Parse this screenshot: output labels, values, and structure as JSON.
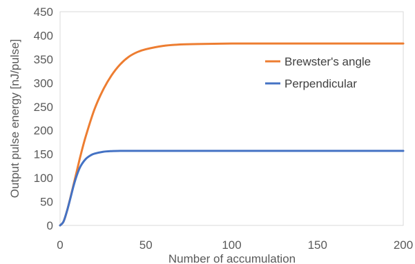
{
  "chart_data": {
    "type": "line",
    "xlabel": "Number of accumulation",
    "ylabel": "Output pulse energy [nJ/pulse]",
    "xlim": [
      0,
      200
    ],
    "ylim": [
      0,
      450
    ],
    "xticks": [
      0,
      50,
      100,
      150,
      200
    ],
    "yticks": [
      0,
      50,
      100,
      150,
      200,
      250,
      300,
      350,
      400,
      450
    ],
    "grid": false,
    "legend": "right, inside plot area",
    "series": [
      {
        "name": "Brewster's angle",
        "color": "#ED7D31",
        "x": [
          0,
          2,
          4,
          6,
          8,
          10,
          12,
          15,
          20,
          25,
          30,
          35,
          40,
          45,
          50,
          60,
          70,
          80,
          100,
          120,
          150,
          200
        ],
        "y": [
          0,
          8,
          30,
          58,
          88,
          118,
          148,
          188,
          244,
          285,
          316,
          339,
          355,
          365,
          371,
          378,
          381,
          382,
          383,
          383,
          383,
          383
        ]
      },
      {
        "name": "Perpendicular",
        "color": "#4472C4",
        "x": [
          0,
          2,
          4,
          6,
          8,
          10,
          12,
          15,
          18,
          20,
          25,
          30,
          35,
          40,
          50,
          60,
          80,
          100,
          150,
          200
        ],
        "y": [
          0,
          8,
          30,
          57,
          85,
          108,
          125,
          140,
          148,
          151,
          155,
          156.5,
          157,
          157,
          157,
          157,
          157,
          157,
          157,
          157
        ]
      }
    ]
  }
}
